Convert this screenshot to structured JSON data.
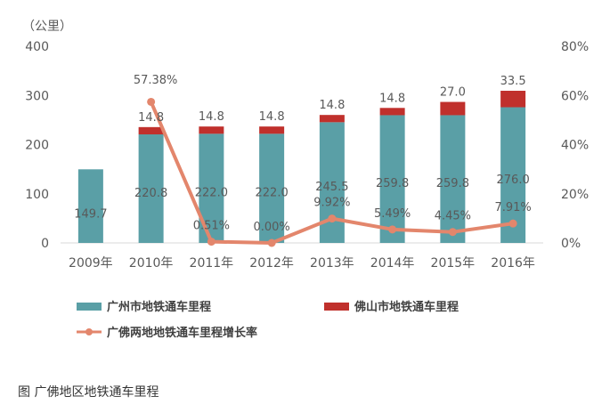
{
  "chart_data": {
    "type": "bar",
    "unit_label": "（公里）",
    "categories": [
      "2009年",
      "2010年",
      "2011年",
      "2012年",
      "2013年",
      "2014年",
      "2015年",
      "2016年"
    ],
    "series": [
      {
        "name": "广州市地铁通车里程",
        "kind": "bar",
        "color": "#5a9fa6",
        "values": [
          149.7,
          220.8,
          222.0,
          222.0,
          245.5,
          259.8,
          259.8,
          276.0
        ],
        "labels": [
          "149.7",
          "220.8",
          "222.0",
          "222.0",
          "245.5",
          "259.8",
          "259.8",
          "276.0"
        ]
      },
      {
        "name": "佛山市地铁通车里程",
        "kind": "bar-stacked",
        "color": "#c0302c",
        "values": [
          0,
          14.8,
          14.8,
          14.8,
          14.8,
          14.8,
          27.0,
          33.5
        ],
        "labels": [
          "",
          "14.8",
          "14.8",
          "14.8",
          "14.8",
          "14.8",
          "27.0",
          "33.5"
        ]
      },
      {
        "name": "广佛两地地铁通车里程增长率",
        "kind": "line",
        "axis": "right",
        "color": "#e3866c",
        "values": [
          null,
          57.38,
          0.51,
          0.0,
          9.92,
          5.49,
          4.45,
          7.91
        ],
        "labels": [
          "",
          "57.38%",
          "0.51%",
          "0.00%",
          "9.92%",
          "5.49%",
          "4.45%",
          "7.91%"
        ]
      }
    ],
    "y_left": {
      "min": 0,
      "max": 400,
      "ticks": [
        "0",
        "100",
        "200",
        "300",
        "400"
      ]
    },
    "y_right": {
      "min": 0,
      "max": 80,
      "ticks": [
        "0%",
        "20%",
        "40%",
        "60%",
        "80%"
      ]
    },
    "grid": false,
    "legend_position": "bottom"
  },
  "caption": "图 广佛地区地铁通车里程"
}
